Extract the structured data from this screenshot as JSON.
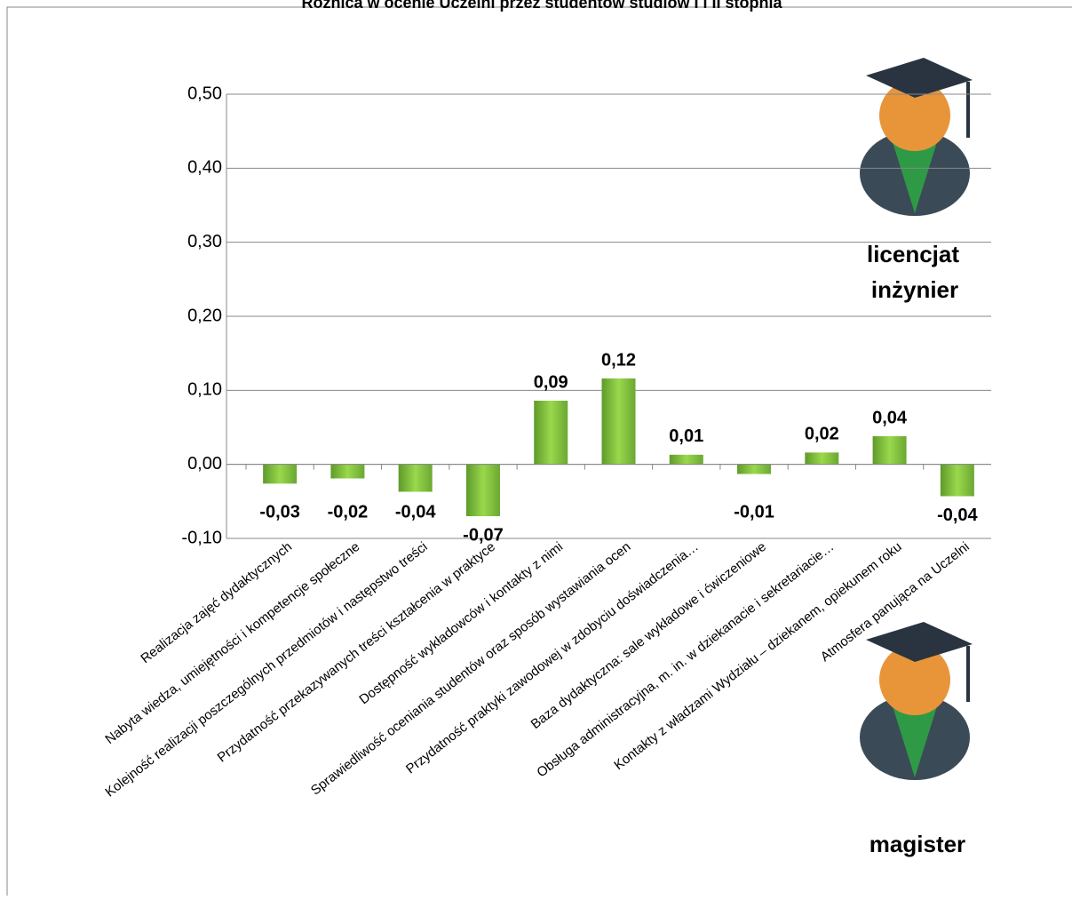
{
  "chart_data": {
    "type": "bar",
    "title": "Różnica w ocenie Uczelni przez studentów studiów I i II stopnia",
    "categories": [
      "Realizacja zajęć dydaktycznych",
      "Nabyta wiedza, umiejętności  i kompetencje społeczne",
      "Kolejność realizacji poszczególnych przedmiotów i następstwo treści",
      "Przydatność przekazywanych treści kształcenia w praktyce",
      "Dostępność wykładowców i kontakty z nimi",
      "Sprawiedliwość oceniania studentów oraz sposób wystawiania ocen",
      "Przydatność praktyki zawodowej w zdobyciu doświadczenia…",
      "Baza dydaktyczna: sale wykładowe i ćwiczeniowe",
      "Obsługa administracyjna, m. in. w dziekanacie i sekretariacie…",
      "Kontakty z władzami Wydziału – dziekanem, opiekunem roku",
      "Atmosfera panująca na Uczelni"
    ],
    "values": [
      -0.026,
      -0.019,
      -0.037,
      -0.07,
      0.086,
      0.116,
      0.013,
      -0.013,
      0.016,
      0.038,
      -0.043
    ],
    "value_labels": [
      "-0,03",
      "-0,02",
      "-0,04",
      "-0,07",
      "0,09",
      "0,12",
      "0,01",
      "-0,01",
      "0,02",
      "0,04",
      "-0,04"
    ],
    "color": "#8cc63f",
    "ylim": [
      -0.1,
      0.5
    ],
    "yticks": [
      {
        "value": -0.1,
        "label": "-0,10"
      },
      {
        "value": 0,
        "label": "0,00"
      },
      {
        "value": 0.1,
        "label": "0,10"
      },
      {
        "value": 0.2,
        "label": "0,20"
      },
      {
        "value": 0.3,
        "label": "0,30"
      },
      {
        "value": 0.4,
        "label": "0,40"
      },
      {
        "value": 0.5,
        "label": "0,50"
      }
    ],
    "grid": true,
    "annotations": [
      "licencjat",
      "inżynier",
      "magister"
    ]
  }
}
